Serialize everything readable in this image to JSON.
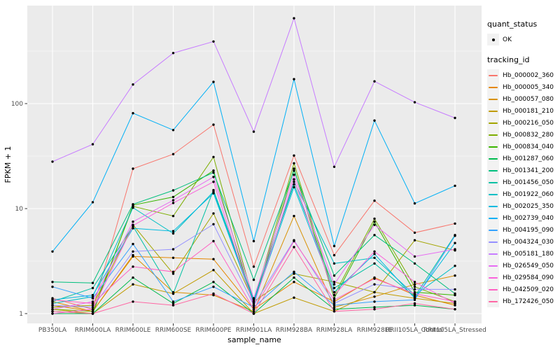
{
  "figure": {
    "background": "#FFFFFF",
    "panel_background": "#EBEBEB",
    "grid_color": "#FFFFFF",
    "tick_color": "#333333",
    "tick_label_color": "#4D4D4D",
    "point_color": "#000000"
  },
  "chart_data": {
    "type": "line",
    "title": "",
    "xlabel": "sample_name",
    "ylabel": "FPKM + 1",
    "y_scale": "log10",
    "ylim": [
      0.81,
      860
    ],
    "y_ticks": [
      1,
      10,
      100
    ],
    "y_tick_labels": [
      "1",
      "10",
      "100"
    ],
    "y_minor_ticks": [
      3.162,
      31.62,
      316.2
    ],
    "grid": true,
    "legend_position": "right",
    "point_marker": "solid-black-circle",
    "categories": [
      "PB350LA",
      "RRIM600LA",
      "RRIM600LE",
      "RRIM600SE",
      "RRIM600PE",
      "RRIM901LA",
      "RRIM928BA",
      "RRIM928LA",
      "RRIM928LE",
      "RRII105LA_Control",
      "RRII105LA_Stressed"
    ],
    "series": [
      {
        "name": "Hb_000002_360",
        "color": "#F8766D",
        "values": [
          1.4,
          1.1,
          24,
          33,
          63,
          2.8,
          32,
          3.6,
          11.9,
          5.9,
          7.2
        ]
      },
      {
        "name": "Hb_000005_340",
        "color": "#E58700",
        "values": [
          1.3,
          1.05,
          3.5,
          3.4,
          3.3,
          1.1,
          2.0,
          1.3,
          2.2,
          1.5,
          1.2
        ]
      },
      {
        "name": "Hb_000057_080",
        "color": "#D89000",
        "values": [
          1.2,
          1.05,
          3.6,
          1.6,
          1.5,
          1.05,
          8.5,
          1.15,
          1.45,
          1.9,
          2.3
        ]
      },
      {
        "name": "Hb_000181_210",
        "color": "#C09B00",
        "values": [
          1.1,
          1.0,
          1.9,
          1.55,
          2.6,
          1.0,
          1.42,
          1.05,
          1.6,
          1.4,
          1.25
        ]
      },
      {
        "name": "Hb_000216_050",
        "color": "#A3A500",
        "values": [
          1.15,
          1.2,
          7.0,
          2.4,
          9.0,
          1.3,
          2.4,
          2.0,
          1.6,
          5.0,
          4.0
        ]
      },
      {
        "name": "Hb_000832_280",
        "color": "#7CAE00",
        "values": [
          1.1,
          1.05,
          10.5,
          8.5,
          31,
          1.3,
          27,
          1.5,
          8.0,
          1.8,
          1.3
        ]
      },
      {
        "name": "Hb_000834_040",
        "color": "#39B600",
        "values": [
          1.05,
          1.0,
          10.8,
          12.9,
          23,
          1.2,
          24,
          1.4,
          7.5,
          1.6,
          1.5
        ]
      },
      {
        "name": "Hb_001287_060",
        "color": "#00BB4E",
        "values": [
          1.0,
          1.0,
          2.2,
          1.25,
          2.0,
          1.0,
          2.2,
          1.1,
          1.15,
          1.2,
          1.1
        ]
      },
      {
        "name": "Hb_001341_200",
        "color": "#00BF7D",
        "values": [
          2.0,
          1.96,
          11.0,
          14.9,
          22,
          2.1,
          23,
          2.3,
          5.6,
          3.0,
          1.55
        ]
      },
      {
        "name": "Hb_001456_050",
        "color": "#00C1A3",
        "values": [
          1.3,
          1.75,
          6.8,
          1.55,
          15.0,
          1.35,
          17,
          1.75,
          3.0,
          1.45,
          5.6
        ]
      },
      {
        "name": "Hb_001922_060",
        "color": "#00BFC4",
        "values": [
          1.25,
          1.45,
          10.2,
          5.8,
          14.5,
          1.3,
          18,
          3.0,
          3.4,
          1.5,
          2.85
        ]
      },
      {
        "name": "Hb_002025_350",
        "color": "#00BAE0",
        "values": [
          1.35,
          1.5,
          6.5,
          6.1,
          14.0,
          1.25,
          16,
          1.6,
          3.7,
          1.4,
          4.7
        ]
      },
      {
        "name": "Hb_002739_040",
        "color": "#00B0F6",
        "values": [
          3.9,
          11.5,
          81,
          56,
          161,
          4.9,
          171,
          4.4,
          69,
          11.2,
          16.5
        ]
      },
      {
        "name": "Hb_004195_090",
        "color": "#35A2FF",
        "values": [
          1.8,
          1.4,
          4.6,
          1.3,
          1.8,
          1.15,
          2.5,
          1.2,
          1.3,
          1.35,
          5.5
        ]
      },
      {
        "name": "Hb_004324_030",
        "color": "#9590FF",
        "values": [
          1.2,
          1.15,
          3.9,
          4.1,
          7.1,
          1.2,
          5.0,
          1.25,
          1.9,
          1.7,
          1.7
        ]
      },
      {
        "name": "Hb_005181_180",
        "color": "#C77CFF",
        "values": [
          28,
          41,
          152,
          303,
          390,
          54,
          650,
          25,
          163,
          103,
          73
        ]
      },
      {
        "name": "Hb_026549_050",
        "color": "#E76BF3",
        "values": [
          1.1,
          1.3,
          7.5,
          12.0,
          20,
          1.4,
          21,
          1.9,
          7.0,
          3.5,
          4.1
        ]
      },
      {
        "name": "Hb_029584_090",
        "color": "#FA62DB",
        "values": [
          1.0,
          1.1,
          6.9,
          11.3,
          18,
          1.2,
          19,
          1.5,
          3.9,
          2.0,
          1.25
        ]
      },
      {
        "name": "Hb_042509_020",
        "color": "#FF61C3",
        "values": [
          1.35,
          1.25,
          2.8,
          2.5,
          4.9,
          1.1,
          4.9,
          1.35,
          2.15,
          1.55,
          1.3
        ]
      },
      {
        "name": "Hb_172426_050",
        "color": "#FF67A4",
        "values": [
          1.05,
          1.0,
          1.3,
          1.2,
          1.55,
          1.0,
          4.3,
          1.05,
          1.1,
          1.25,
          1.1
        ]
      }
    ],
    "legends": [
      {
        "title": "quant_status",
        "items": [
          {
            "label": "OK",
            "symbol": "black-point"
          }
        ]
      },
      {
        "title": "tracking_id",
        "items_from": "series"
      }
    ]
  }
}
